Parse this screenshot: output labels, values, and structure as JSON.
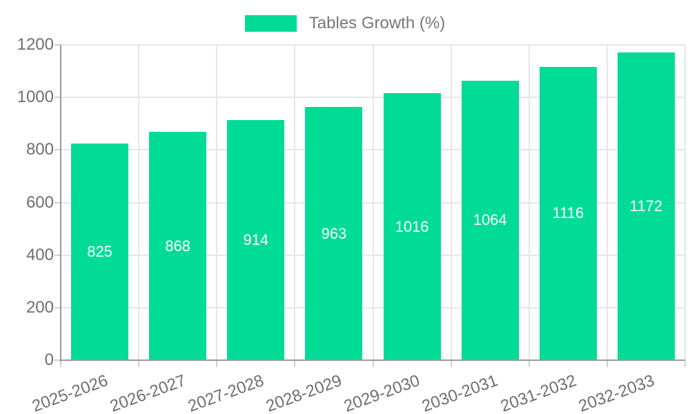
{
  "chart_data": {
    "type": "bar",
    "title": "",
    "legend_label": "Tables Growth (%)",
    "legend_position": "top",
    "categories": [
      "2025-2026",
      "2026-2027",
      "2027-2028",
      "2028-2029",
      "2029-2030",
      "2030-2031",
      "2031-2032",
      "2032-2033"
    ],
    "series": [
      {
        "name": "Tables Growth (%)",
        "values": [
          825,
          868,
          914,
          963,
          1016,
          1064,
          1116,
          1172
        ]
      }
    ],
    "value_labels_shown": true,
    "xlabel": "",
    "ylabel": "",
    "ylim": [
      0,
      1200
    ],
    "yticks": [
      0,
      200,
      400,
      600,
      800,
      1000,
      1200
    ],
    "grid": true,
    "colors": {
      "bar": "#00DC96",
      "value_label": "#ffffff",
      "grid_line": "#e6e6e6",
      "axis_line": "#999999",
      "tick_mark": "#cfcfcf",
      "tick_label": "#6e6e6e",
      "legend_text": "#777777",
      "background": "#ffffff"
    }
  }
}
